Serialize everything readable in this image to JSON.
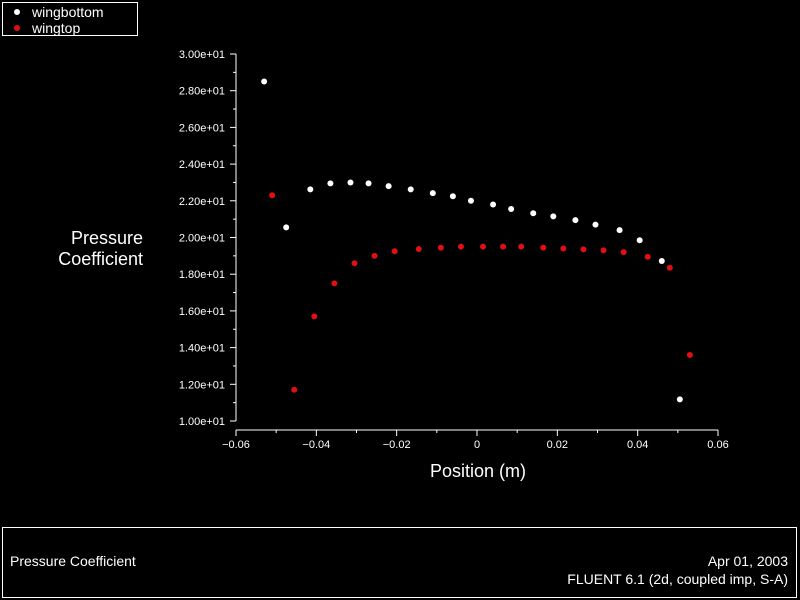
{
  "chart_data": {
    "type": "scatter",
    "ylabel_lines": [
      "Pressure",
      "Coefficient"
    ],
    "xlabel": "Position (m)",
    "xlim": [
      -0.06,
      0.06
    ],
    "ylim": [
      10,
      30
    ],
    "x_ticks": [
      "−0.06",
      "−0.04",
      "−0.02",
      "0",
      "0.02",
      "0.04",
      "0.06"
    ],
    "x_tick_values": [
      -0.06,
      -0.04,
      -0.02,
      0,
      0.02,
      0.04,
      0.06
    ],
    "y_ticks": [
      "1.00e+01",
      "1.20e+01",
      "1.40e+01",
      "1.60e+01",
      "1.80e+01",
      "2.00e+01",
      "2.20e+01",
      "2.40e+01",
      "2.60e+01",
      "2.80e+01",
      "3.00e+01"
    ],
    "y_tick_values": [
      10,
      12,
      14,
      16,
      18,
      20,
      22,
      24,
      26,
      28,
      30
    ],
    "grid": false,
    "legend_position": "top-left",
    "series": [
      {
        "name": "wingbottom",
        "color": "#ffffff",
        "points": [
          [
            -0.053,
            28.5
          ],
          [
            -0.0475,
            20.55
          ],
          [
            -0.0415,
            22.62
          ],
          [
            -0.0365,
            22.95
          ],
          [
            -0.0315,
            23.0
          ],
          [
            -0.027,
            22.95
          ],
          [
            -0.022,
            22.8
          ],
          [
            -0.0165,
            22.62
          ],
          [
            -0.011,
            22.42
          ],
          [
            -0.006,
            22.25
          ],
          [
            -0.0015,
            22.0
          ],
          [
            0.004,
            21.8
          ],
          [
            0.0085,
            21.55
          ],
          [
            0.014,
            21.32
          ],
          [
            0.019,
            21.15
          ],
          [
            0.0245,
            20.95
          ],
          [
            0.0295,
            20.7
          ],
          [
            0.0355,
            20.4
          ],
          [
            0.0405,
            19.85
          ],
          [
            0.046,
            18.72
          ],
          [
            0.0505,
            11.18
          ]
        ]
      },
      {
        "name": "wingtop",
        "color": "#e01010",
        "points": [
          [
            -0.051,
            22.3
          ],
          [
            -0.0455,
            11.7
          ],
          [
            -0.0405,
            15.7
          ],
          [
            -0.0355,
            17.5
          ],
          [
            -0.0305,
            18.6
          ],
          [
            -0.0255,
            19.0
          ],
          [
            -0.0205,
            19.25
          ],
          [
            -0.0145,
            19.37
          ],
          [
            -0.009,
            19.45
          ],
          [
            -0.004,
            19.5
          ],
          [
            0.0015,
            19.5
          ],
          [
            0.0065,
            19.5
          ],
          [
            0.011,
            19.5
          ],
          [
            0.0165,
            19.45
          ],
          [
            0.0215,
            19.4
          ],
          [
            0.0265,
            19.35
          ],
          [
            0.0315,
            19.3
          ],
          [
            0.0365,
            19.2
          ],
          [
            0.0425,
            18.95
          ],
          [
            0.048,
            18.35
          ],
          [
            0.053,
            13.6
          ]
        ]
      }
    ]
  },
  "footer": {
    "title": "Pressure Coefficient",
    "date": "Apr 01, 2003",
    "solver": "FLUENT 6.1 (2d, coupled imp, S-A)"
  }
}
